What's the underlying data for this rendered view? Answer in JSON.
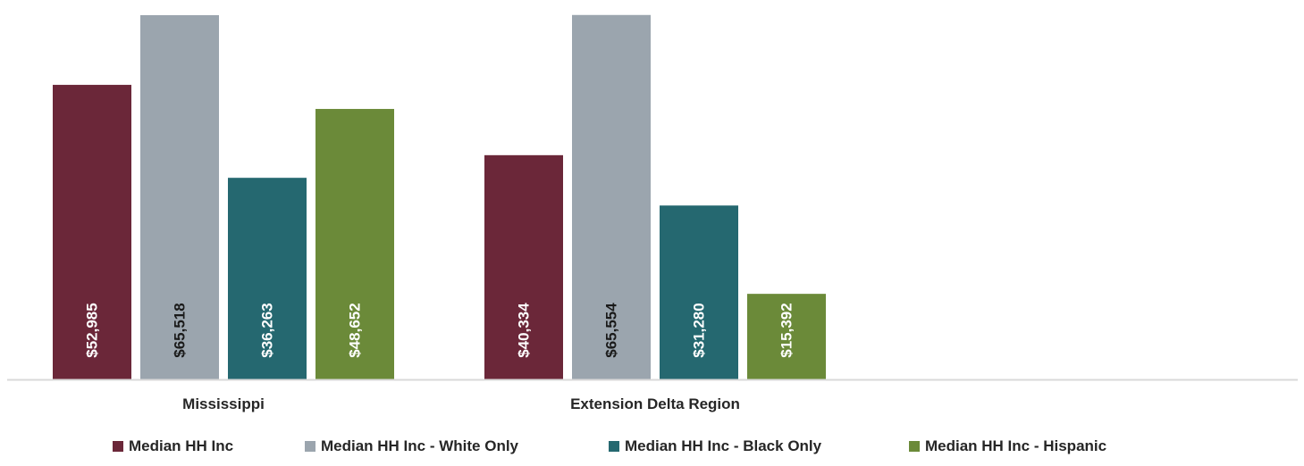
{
  "chart_data": {
    "type": "bar",
    "categories": [
      "Mississippi",
      "Extension Delta Region"
    ],
    "series": [
      {
        "name": "Median HH Inc",
        "values": [
          52985,
          40334
        ],
        "labels": [
          "$52,985",
          "$40,334"
        ],
        "color": "#6B2739",
        "label_color": "#ffffff"
      },
      {
        "name": "Median HH Inc - White Only",
        "values": [
          65518,
          65554
        ],
        "labels": [
          "$65,518",
          "$65,554"
        ],
        "color": "#9BA5AE",
        "label_color": "#1a1a1a"
      },
      {
        "name": "Median HH Inc - Black Only",
        "values": [
          36263,
          31280
        ],
        "labels": [
          "$36,263",
          "$31,280"
        ],
        "color": "#256870",
        "label_color": "#ffffff"
      },
      {
        "name": "Median HH Inc - Hispanic",
        "values": [
          48652,
          15392
        ],
        "labels": [
          "$48,652",
          "$15,392"
        ],
        "color": "#6B8A39",
        "label_color": "#ffffff"
      }
    ],
    "title": "",
    "xlabel": "",
    "ylabel": "",
    "ylim": [
      0,
      66000
    ],
    "grid": false,
    "legend_position": "bottom",
    "axis_line_color": "#d9d9d9"
  }
}
